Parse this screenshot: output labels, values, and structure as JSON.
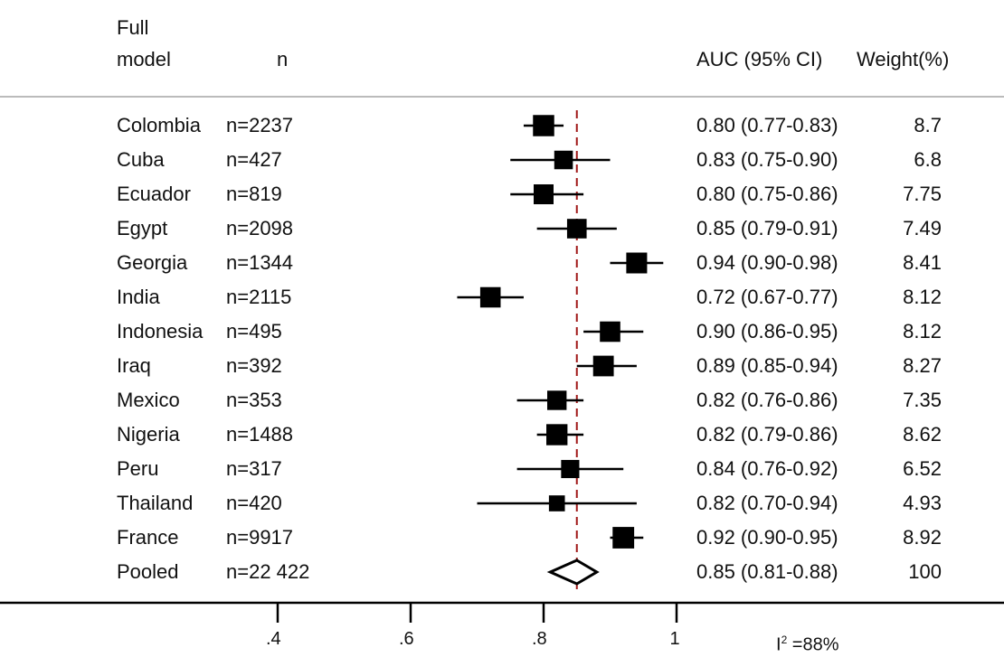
{
  "chart_data": {
    "type": "forest",
    "headers": {
      "col1_line1": "Full",
      "col1_line2": "model",
      "col2": "n",
      "col3": "AUC (95% CI)",
      "col4": "Weight(%)"
    },
    "rows": [
      {
        "country": "Colombia",
        "n": "n=2237",
        "auc": 0.8,
        "lo": 0.77,
        "hi": 0.83,
        "ci_text": "0.80 (0.77-0.83)",
        "weight": "8.7"
      },
      {
        "country": "Cuba",
        "n": "n=427",
        "auc": 0.83,
        "lo": 0.75,
        "hi": 0.9,
        "ci_text": "0.83 (0.75-0.90)",
        "weight": "6.8"
      },
      {
        "country": "Ecuador",
        "n": "n=819",
        "auc": 0.8,
        "lo": 0.75,
        "hi": 0.86,
        "ci_text": "0.80 (0.75-0.86)",
        "weight": "7.75"
      },
      {
        "country": "Egypt",
        "n": "n=2098",
        "auc": 0.85,
        "lo": 0.79,
        "hi": 0.91,
        "ci_text": "0.85 (0.79-0.91)",
        "weight": "7.49"
      },
      {
        "country": "Georgia",
        "n": "n=1344",
        "auc": 0.94,
        "lo": 0.9,
        "hi": 0.98,
        "ci_text": "0.94 (0.90-0.98)",
        "weight": "8.41"
      },
      {
        "country": "India",
        "n": "n=2115",
        "auc": 0.72,
        "lo": 0.67,
        "hi": 0.77,
        "ci_text": "0.72 (0.67-0.77)",
        "weight": "8.12"
      },
      {
        "country": "Indonesia",
        "n": "n=495",
        "auc": 0.9,
        "lo": 0.86,
        "hi": 0.95,
        "ci_text": "0.90 (0.86-0.95)",
        "weight": "8.12"
      },
      {
        "country": "Iraq",
        "n": "n=392",
        "auc": 0.89,
        "lo": 0.85,
        "hi": 0.94,
        "ci_text": "0.89 (0.85-0.94)",
        "weight": "8.27"
      },
      {
        "country": "Mexico",
        "n": "n=353",
        "auc": 0.82,
        "lo": 0.76,
        "hi": 0.86,
        "ci_text": "0.82 (0.76-0.86)",
        "weight": "7.35"
      },
      {
        "country": "Nigeria",
        "n": "n=1488",
        "auc": 0.82,
        "lo": 0.79,
        "hi": 0.86,
        "ci_text": "0.82 (0.79-0.86)",
        "weight": "8.62"
      },
      {
        "country": "Peru",
        "n": "n=317",
        "auc": 0.84,
        "lo": 0.76,
        "hi": 0.92,
        "ci_text": "0.84 (0.76-0.92)",
        "weight": "6.52"
      },
      {
        "country": "Thailand",
        "n": "n=420",
        "auc": 0.82,
        "lo": 0.7,
        "hi": 0.94,
        "ci_text": "0.82 (0.70-0.94)",
        "weight": "4.93"
      },
      {
        "country": "France",
        "n": "n=9917",
        "auc": 0.92,
        "lo": 0.9,
        "hi": 0.95,
        "ci_text": "0.92 (0.90-0.95)",
        "weight": "8.92"
      }
    ],
    "pooled": {
      "country": "Pooled",
      "n": "n=22 422",
      "auc": 0.85,
      "lo": 0.81,
      "hi": 0.88,
      "ci_text": "0.85 (0.81-0.88)",
      "weight": "100"
    },
    "x_ticks": [
      0.4,
      0.6,
      0.8,
      1.0
    ],
    "x_tick_labels": [
      ".4",
      ".6",
      ".8",
      "1"
    ],
    "reference_line": 0.85,
    "heterogeneity": {
      "prefix": "I",
      "sup": "2",
      "value": " =88%"
    },
    "colors": {
      "marker": "#000000",
      "reference_line": "#a01818",
      "rule": "#bbbbbb"
    }
  }
}
